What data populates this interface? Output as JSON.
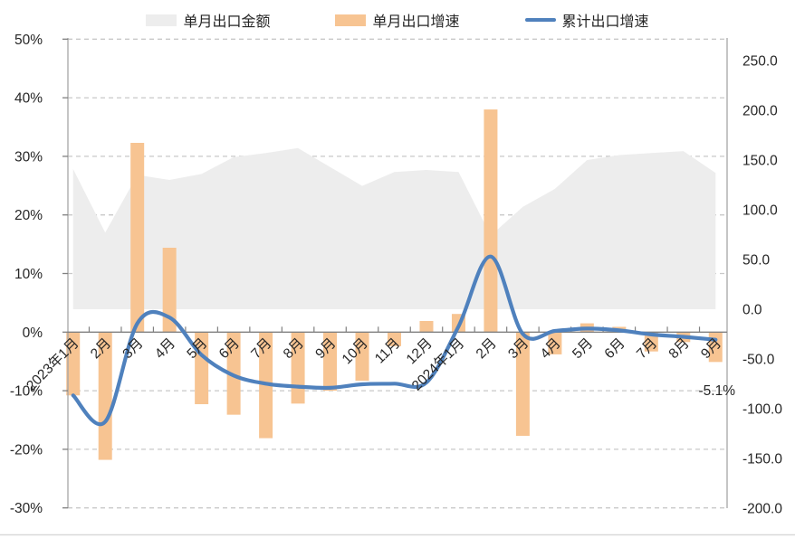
{
  "chart_data": {
    "type": "combo",
    "title": "",
    "categories": [
      "2023年1月",
      "2月",
      "3月",
      "4月",
      "5月",
      "6月",
      "7月",
      "8月",
      "9月",
      "10月",
      "11月",
      "12月",
      "2024年1月",
      "2月",
      "3月",
      "4月",
      "5月",
      "6月",
      "7月",
      "8月",
      "9月"
    ],
    "series": [
      {
        "name": "单月出口金额",
        "type": "area",
        "axis": "right",
        "color": "#EDEDED",
        "values": [
          141,
          77,
          135,
          130,
          136,
          153,
          157,
          162,
          143,
          124,
          138,
          140,
          138,
          74,
          103,
          121,
          150,
          155,
          157,
          159,
          137
        ]
      },
      {
        "name": "单月出口增速",
        "type": "bar",
        "axis": "left",
        "color": "#F7C492",
        "values": [
          -10.8,
          -21.8,
          32.3,
          14.4,
          -12.3,
          -14.1,
          -18.1,
          -12.2,
          -10.0,
          -8.3,
          -2.4,
          1.9,
          3.1,
          38.0,
          -17.7,
          -3.8,
          1.5,
          0.9,
          -3.3,
          -1.7,
          -5.1
        ]
      },
      {
        "name": "累计出口增速",
        "type": "line",
        "axis": "left",
        "smooth": true,
        "color": "#4F81BD",
        "values": [
          -10.8,
          -15.3,
          1.5,
          2.5,
          -3.9,
          -7.4,
          -8.8,
          -9.3,
          -9.5,
          -8.9,
          -8.8,
          -8.6,
          1.0,
          12.9,
          -0.3,
          0.2,
          0.6,
          0.3,
          -0.4,
          -0.8,
          -1.3
        ]
      }
    ],
    "left_axis": {
      "ticks": [
        "50%",
        "40%",
        "30%",
        "20%",
        "10%",
        "0%",
        "-10%",
        "-20%",
        "-30%"
      ],
      "values": [
        50,
        40,
        30,
        20,
        10,
        0,
        -10,
        -20,
        -30
      ],
      "min": -30,
      "max": 50
    },
    "right_axis": {
      "ticks": [
        "250.0",
        "200.0",
        "150.0",
        "100.0",
        "50.0",
        "0.0",
        "-50.0",
        "-100.0",
        "-150.0",
        "-200.0"
      ],
      "values": [
        250,
        200,
        150,
        100,
        50,
        0,
        -50,
        -100,
        -150,
        -200
      ],
      "min": -200,
      "max": 250
    },
    "gridline_values": [
      50,
      40,
      30,
      20,
      10,
      -10,
      -20,
      -30
    ],
    "legend_position": "top",
    "grid": "dashed",
    "annotation": {
      "text": "-5.1%"
    }
  },
  "colors": {
    "gridline": "#C9C9C9",
    "axis_line": "#A6A6A6",
    "zero_axis": "#808080",
    "text": "#262626",
    "bottom_border": "#D9D9D9"
  }
}
